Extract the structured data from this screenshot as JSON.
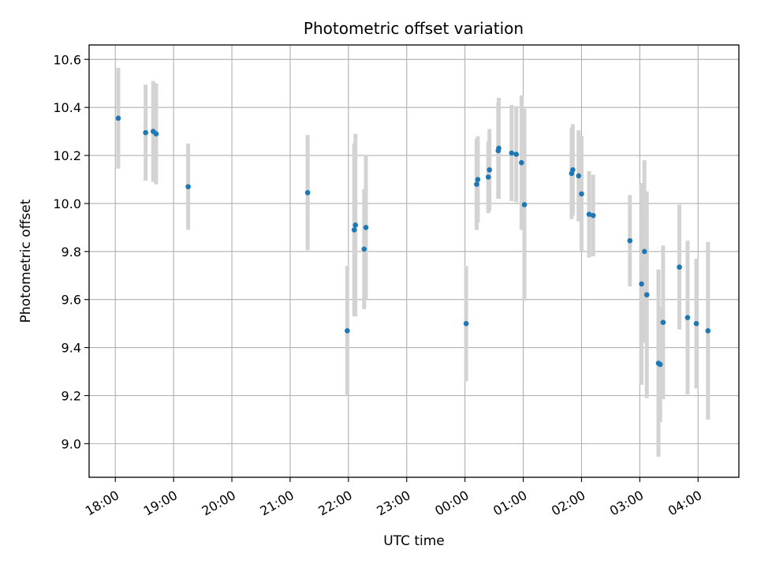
{
  "chart_data": {
    "type": "scatter",
    "title": "Photometric offset variation",
    "xlabel": "UTC time",
    "ylabel": "Photometric offset",
    "grid": true,
    "legend": "none",
    "xlim": [
      17.55,
      28.7
    ],
    "ylim": [
      8.86,
      10.66
    ],
    "x_ticks": [
      {
        "value": 18,
        "label": "18:00"
      },
      {
        "value": 19,
        "label": "19:00"
      },
      {
        "value": 20,
        "label": "20:00"
      },
      {
        "value": 21,
        "label": "21:00"
      },
      {
        "value": 22,
        "label": "22:00"
      },
      {
        "value": 23,
        "label": "23:00"
      },
      {
        "value": 24,
        "label": "00:00"
      },
      {
        "value": 25,
        "label": "01:00"
      },
      {
        "value": 26,
        "label": "02:00"
      },
      {
        "value": 27,
        "label": "03:00"
      },
      {
        "value": 28,
        "label": "04:00"
      }
    ],
    "y_ticks": [
      {
        "value": 9.0,
        "label": "9.0"
      },
      {
        "value": 9.2,
        "label": "9.2"
      },
      {
        "value": 9.4,
        "label": "9.4"
      },
      {
        "value": 9.6,
        "label": "9.6"
      },
      {
        "value": 9.8,
        "label": "9.8"
      },
      {
        "value": 10.0,
        "label": "10.0"
      },
      {
        "value": 10.2,
        "label": "10.2"
      },
      {
        "value": 10.4,
        "label": "10.4"
      },
      {
        "value": 10.6,
        "label": "10.6"
      }
    ],
    "series": [
      {
        "name": "offset",
        "marker_color": "#1f77b4",
        "errorbar_color": "#d3d3d3",
        "points": [
          {
            "x": 18.05,
            "y": 10.355,
            "err": 0.21
          },
          {
            "x": 18.52,
            "y": 10.295,
            "err": 0.2
          },
          {
            "x": 18.65,
            "y": 10.3,
            "err": 0.21
          },
          {
            "x": 18.7,
            "y": 10.29,
            "err": 0.21
          },
          {
            "x": 19.25,
            "y": 10.07,
            "err": 0.18
          },
          {
            "x": 21.3,
            "y": 10.045,
            "err": 0.24
          },
          {
            "x": 21.98,
            "y": 9.47,
            "err": 0.27
          },
          {
            "x": 22.1,
            "y": 9.89,
            "err": 0.36
          },
          {
            "x": 22.12,
            "y": 9.91,
            "err": 0.38
          },
          {
            "x": 22.27,
            "y": 9.81,
            "err": 0.25
          },
          {
            "x": 22.3,
            "y": 9.9,
            "err": 0.3
          },
          {
            "x": 24.02,
            "y": 9.5,
            "err": 0.24
          },
          {
            "x": 24.2,
            "y": 10.08,
            "err": 0.19
          },
          {
            "x": 24.22,
            "y": 10.1,
            "err": 0.18
          },
          {
            "x": 24.4,
            "y": 10.11,
            "err": 0.15
          },
          {
            "x": 24.42,
            "y": 10.14,
            "err": 0.17
          },
          {
            "x": 24.57,
            "y": 10.22,
            "err": 0.2
          },
          {
            "x": 24.58,
            "y": 10.23,
            "err": 0.21
          },
          {
            "x": 24.8,
            "y": 10.21,
            "err": 0.2
          },
          {
            "x": 24.88,
            "y": 10.205,
            "err": 0.2
          },
          {
            "x": 24.97,
            "y": 10.17,
            "err": 0.28
          },
          {
            "x": 25.02,
            "y": 9.995,
            "err": 0.4
          },
          {
            "x": 25.83,
            "y": 10.125,
            "err": 0.19
          },
          {
            "x": 25.85,
            "y": 10.14,
            "err": 0.19
          },
          {
            "x": 25.95,
            "y": 10.115,
            "err": 0.19
          },
          {
            "x": 26.0,
            "y": 10.04,
            "err": 0.24
          },
          {
            "x": 26.13,
            "y": 9.955,
            "err": 0.18
          },
          {
            "x": 26.2,
            "y": 9.95,
            "err": 0.17
          },
          {
            "x": 26.83,
            "y": 9.845,
            "err": 0.19
          },
          {
            "x": 27.03,
            "y": 9.665,
            "err": 0.42
          },
          {
            "x": 27.08,
            "y": 9.8,
            "err": 0.38
          },
          {
            "x": 27.12,
            "y": 9.62,
            "err": 0.43
          },
          {
            "x": 27.32,
            "y": 9.335,
            "err": 0.39
          },
          {
            "x": 27.35,
            "y": 9.33,
            "err": 0.24
          },
          {
            "x": 27.4,
            "y": 9.505,
            "err": 0.32
          },
          {
            "x": 27.68,
            "y": 9.735,
            "err": 0.26
          },
          {
            "x": 27.82,
            "y": 9.525,
            "err": 0.32
          },
          {
            "x": 27.97,
            "y": 9.5,
            "err": 0.27
          },
          {
            "x": 28.17,
            "y": 9.47,
            "err": 0.37
          }
        ]
      }
    ]
  }
}
